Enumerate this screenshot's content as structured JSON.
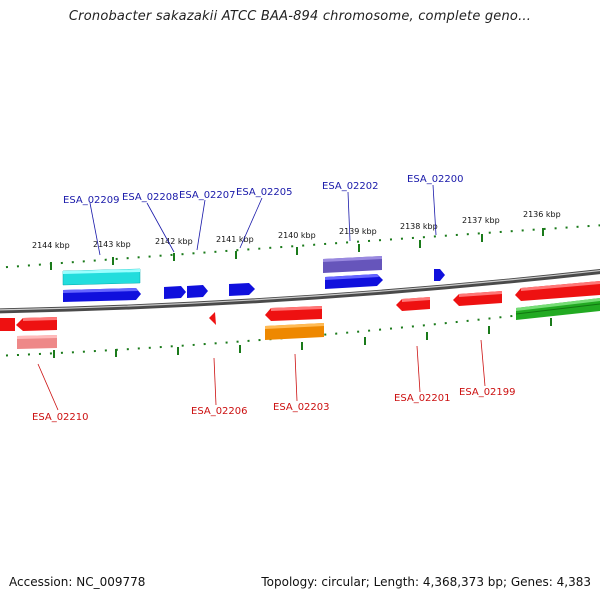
{
  "title": "Cronobacter sakazakii ATCC BAA-894 chromosome, complete geno...",
  "footer": {
    "accession": "Accession: NC_009778",
    "summary": "Topology: circular; Length: 4,368,373 bp; Genes: 4,383"
  },
  "scale": {
    "labels": [
      "2144 kbp",
      "2143 kbp",
      "2142 kbp",
      "2141 kbp",
      "2140 kbp",
      "2139 kbp",
      "2138 kbp",
      "2137 kbp",
      "2136 kbp"
    ]
  },
  "genes_top": [
    {
      "id": "ESA_02209"
    },
    {
      "id": "ESA_02208"
    },
    {
      "id": "ESA_02207"
    },
    {
      "id": "ESA_02205"
    },
    {
      "id": "ESA_02202"
    },
    {
      "id": "ESA_02200"
    }
  ],
  "genes_bottom": [
    {
      "id": "ESA_02210"
    },
    {
      "id": "ESA_02206"
    },
    {
      "id": "ESA_02203"
    },
    {
      "id": "ESA_02201"
    },
    {
      "id": "ESA_02199"
    }
  ],
  "colors": {
    "forward": "#1010dd",
    "reverse": "#ee1111",
    "cyan": "#22dddd",
    "purple": "#6655bb",
    "orange": "#ee8800",
    "green": "#22aa22",
    "pink": "#ee7777",
    "tick": "#1a7a1a",
    "label_top": "#1a1aaa",
    "label_bottom": "#cc1111"
  }
}
